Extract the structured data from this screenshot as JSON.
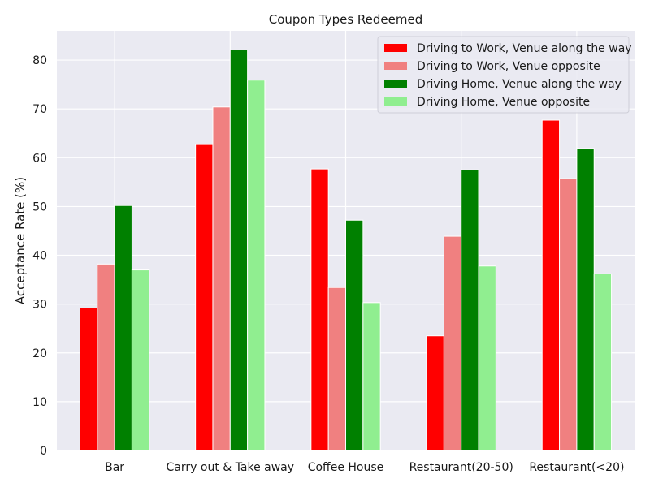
{
  "chart_data": {
    "type": "bar",
    "title": "Coupon Types Redeemed",
    "xlabel": "",
    "ylabel": "Acceptance Rate (%)",
    "ylim": [
      0,
      86
    ],
    "yticks": [
      0,
      10,
      20,
      30,
      40,
      50,
      60,
      70,
      80
    ],
    "grid": true,
    "legend_position": "top-right",
    "categories": [
      "Bar",
      "Carry out & Take away",
      "Coffee House",
      "Restaurant(20-50)",
      "Restaurant(<20)"
    ],
    "series": [
      {
        "name": "Driving to Work, Venue along the way",
        "color": "#ff0000",
        "values": [
          29.2,
          62.7,
          57.7,
          23.5,
          67.7
        ]
      },
      {
        "name": "Driving to Work, Venue opposite",
        "color": "#f08080",
        "values": [
          38.2,
          70.4,
          33.4,
          43.9,
          55.7
        ]
      },
      {
        "name": "Driving Home, Venue along the way",
        "color": "#008000",
        "values": [
          50.2,
          82.1,
          47.2,
          57.5,
          61.9
        ]
      },
      {
        "name": "Driving Home, Venue opposite",
        "color": "#90ee90",
        "values": [
          37.0,
          75.9,
          30.3,
          37.8,
          36.2
        ]
      }
    ]
  },
  "colors": {
    "plot_background": "#eaeaf2",
    "grid": "#ffffff"
  }
}
